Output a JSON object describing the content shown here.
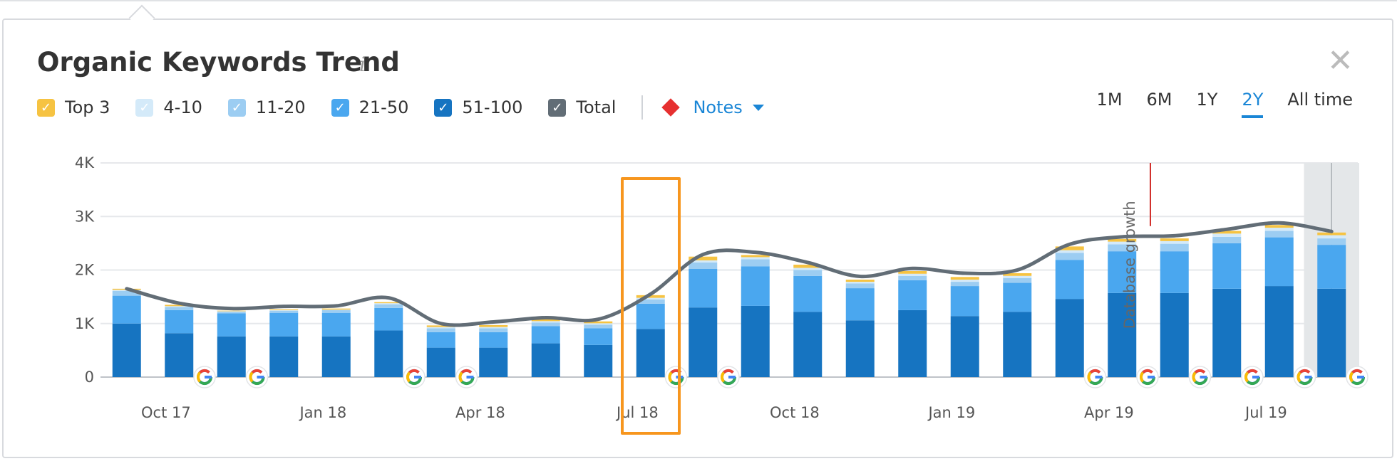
{
  "widget": {
    "title": "Organic Keywords Trend",
    "info_icon": "i",
    "close_icon": "✕"
  },
  "legend": {
    "items": [
      {
        "label": "Top 3",
        "color": "#f6c342",
        "checked": true
      },
      {
        "label": "4-10",
        "color": "#d4eaf9",
        "checked": true
      },
      {
        "label": "11-20",
        "color": "#9ccdf2",
        "checked": true
      },
      {
        "label": "21-50",
        "color": "#4aa7ef",
        "checked": true
      },
      {
        "label": "51-100",
        "color": "#1674c1",
        "checked": true
      },
      {
        "label": "Total",
        "color": "#626d76",
        "checked": true
      }
    ],
    "notes_label": "Notes"
  },
  "ranges": {
    "items": [
      "1M",
      "6M",
      "1Y",
      "2Y",
      "All time"
    ],
    "active": "2Y"
  },
  "chart_data": {
    "type": "bar",
    "stacked": true,
    "ylim": [
      0,
      4000
    ],
    "y_ticks": [
      {
        "value": 0,
        "label": "0"
      },
      {
        "value": 1000,
        "label": "1K"
      },
      {
        "value": 2000,
        "label": "2K"
      },
      {
        "value": 3000,
        "label": "3K"
      },
      {
        "value": 4000,
        "label": "4K"
      }
    ],
    "x_labels": [
      {
        "index": 1.25,
        "label": "Oct 17"
      },
      {
        "index": 4.25,
        "label": "Jan 18"
      },
      {
        "index": 7.25,
        "label": "Apr 18"
      },
      {
        "index": 10.25,
        "label": "Jul 18"
      },
      {
        "index": 13.25,
        "label": "Oct 18"
      },
      {
        "index": 16.25,
        "label": "Jan 19"
      },
      {
        "index": 19.25,
        "label": "Apr 19"
      },
      {
        "index": 22.25,
        "label": "Jul 19"
      }
    ],
    "series": [
      {
        "name": "51-100",
        "color": "#1674c1",
        "values": [
          1000,
          820,
          760,
          760,
          760,
          870,
          550,
          550,
          630,
          600,
          900,
          1300,
          1330,
          1220,
          1060,
          1250,
          1140,
          1220,
          1460,
          1570,
          1570,
          1650,
          1700,
          1650
        ]
      },
      {
        "name": "21-50",
        "color": "#4aa7ef",
        "values": [
          520,
          430,
          430,
          440,
          440,
          420,
          290,
          290,
          320,
          310,
          470,
          720,
          740,
          670,
          600,
          560,
          560,
          540,
          730,
          780,
          780,
          850,
          910,
          820
        ]
      },
      {
        "name": "11-20",
        "color": "#9ccdf2",
        "values": [
          90,
          60,
          30,
          40,
          50,
          70,
          70,
          70,
          70,
          70,
          80,
          120,
          130,
          110,
          90,
          80,
          80,
          90,
          130,
          130,
          140,
          120,
          120,
          120
        ]
      },
      {
        "name": "4-10",
        "color": "#d4eaf9",
        "values": [
          20,
          15,
          10,
          10,
          10,
          20,
          25,
          25,
          25,
          25,
          30,
          40,
          40,
          40,
          30,
          40,
          40,
          40,
          50,
          50,
          50,
          60,
          60,
          60
        ]
      },
      {
        "name": "Top 3",
        "color": "#f6c342",
        "values": [
          20,
          25,
          10,
          15,
          20,
          20,
          30,
          35,
          35,
          35,
          50,
          70,
          40,
          60,
          40,
          50,
          50,
          50,
          70,
          50,
          50,
          50,
          50,
          50
        ]
      }
    ],
    "total_line": {
      "name": "Total",
      "color": "#626d76",
      "values": [
        1650,
        1380,
        1280,
        1320,
        1330,
        1480,
        1000,
        1030,
        1110,
        1080,
        1550,
        2290,
        2330,
        2140,
        1880,
        2030,
        1940,
        2000,
        2480,
        2620,
        2640,
        2760,
        2880,
        2720
      ]
    },
    "google_update_markers": [
      2,
      3,
      6,
      7,
      11,
      12,
      19,
      20,
      21,
      22,
      23,
      24
    ],
    "annotation": {
      "label": "Database growth",
      "index": 20,
      "color": "#d2312d"
    },
    "selected_index": 10
  }
}
